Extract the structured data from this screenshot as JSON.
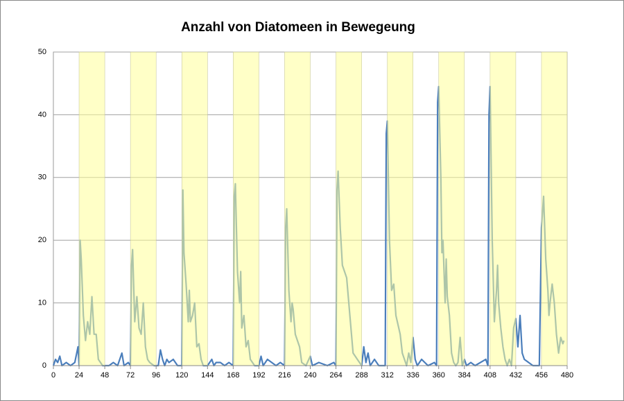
{
  "chart_data": {
    "type": "line",
    "title": "Anzahl von Diatomeen in Bewegeung",
    "color": "#4a7ebb",
    "band_color": "#ffff99",
    "grid": true,
    "xlim": [
      0,
      480
    ],
    "xticks": [
      0,
      24,
      48,
      72,
      96,
      120,
      144,
      168,
      192,
      216,
      240,
      264,
      288,
      312,
      336,
      360,
      384,
      408,
      432,
      456,
      480
    ],
    "ylim": [
      0,
      50
    ],
    "yticks": [
      0,
      10,
      20,
      30,
      40,
      50
    ],
    "shaded_x_ranges": [
      [
        24,
        48
      ],
      [
        72,
        96
      ],
      [
        120,
        144
      ],
      [
        168,
        192
      ],
      [
        216,
        240
      ],
      [
        264,
        288
      ],
      [
        312,
        336
      ],
      [
        360,
        384
      ],
      [
        408,
        432
      ],
      [
        456,
        480
      ]
    ],
    "x": [
      0,
      2,
      4,
      6,
      8,
      12,
      16,
      20,
      23,
      24,
      25,
      26,
      28,
      30,
      32,
      34,
      36,
      38,
      40,
      42,
      44,
      46,
      52,
      56,
      60,
      64,
      66,
      70,
      72,
      73,
      74,
      76,
      78,
      80,
      82,
      84,
      86,
      88,
      90,
      94,
      98,
      100,
      102,
      104,
      106,
      108,
      112,
      116,
      120,
      121,
      122,
      124,
      126,
      127,
      128,
      130,
      132,
      134,
      136,
      138,
      140,
      144,
      148,
      150,
      152,
      156,
      160,
      164,
      168,
      169,
      170,
      172,
      174,
      175,
      176,
      178,
      180,
      182,
      184,
      188,
      192,
      194,
      196,
      200,
      204,
      208,
      212,
      216,
      217,
      218,
      220,
      222,
      223,
      224,
      226,
      228,
      230,
      232,
      236,
      240,
      242,
      248,
      256,
      262,
      264,
      265,
      266,
      268,
      270,
      272,
      274,
      276,
      278,
      280,
      284,
      288,
      290,
      292,
      294,
      296,
      300,
      304,
      310,
      311,
      312,
      314,
      316,
      318,
      320,
      324,
      326,
      328,
      330,
      332,
      334,
      336,
      338,
      340,
      344,
      350,
      356,
      358,
      359,
      360,
      362,
      363,
      364,
      366,
      367,
      368,
      370,
      372,
      374,
      376,
      378,
      380,
      382,
      384,
      386,
      390,
      394,
      404,
      406,
      407,
      408,
      410,
      412,
      414,
      415,
      416,
      418,
      420,
      422,
      424,
      426,
      428,
      430,
      432,
      434,
      436,
      438,
      440,
      444,
      448,
      454,
      456,
      458,
      460,
      462,
      463,
      464,
      466,
      468,
      470,
      472,
      474,
      476,
      477
    ],
    "values": [
      0,
      1,
      0.5,
      1.5,
      0,
      0.5,
      0,
      0.5,
      3,
      0,
      20,
      17,
      8,
      4,
      7,
      5,
      11,
      5,
      5,
      1,
      0.5,
      0,
      0,
      0.5,
      0,
      2,
      0,
      0.5,
      0,
      16,
      18.5,
      7,
      11,
      6,
      5,
      10,
      3,
      1,
      0.5,
      0,
      0,
      2.5,
      1,
      0,
      1,
      0.5,
      1,
      0,
      0,
      28,
      18,
      13,
      7,
      12,
      7,
      8,
      10,
      3,
      3.5,
      1,
      0,
      0,
      1,
      0,
      0.5,
      0.5,
      0,
      0.5,
      0,
      27,
      29,
      15,
      10,
      15,
      6,
      8,
      3,
      4,
      1,
      0,
      0,
      1.5,
      0,
      1,
      0.5,
      0,
      0.5,
      0,
      22,
      25,
      12,
      7,
      10,
      9,
      5,
      4,
      3,
      0.5,
      0,
      1.5,
      0,
      0.5,
      0,
      0.5,
      0,
      28,
      31,
      22,
      16,
      15,
      14,
      10,
      6,
      2,
      1,
      0,
      3,
      0.5,
      2,
      0,
      1,
      0,
      0,
      37,
      39,
      20,
      12,
      13,
      8,
      5,
      2,
      1,
      0,
      2,
      0.5,
      4.5,
      1,
      0,
      1,
      0,
      0.5,
      0,
      42,
      44.5,
      30,
      18,
      20,
      10,
      17,
      11,
      8,
      2,
      0.5,
      0,
      0.5,
      4.5,
      0,
      1,
      0,
      0.5,
      0,
      1,
      0,
      40,
      44.5,
      20,
      7,
      12,
      16,
      10,
      6,
      3,
      1,
      0,
      1,
      0,
      6,
      7.5,
      3,
      8,
      2,
      1,
      0.5,
      0,
      0,
      22,
      27,
      17,
      12,
      8,
      10,
      13,
      10,
      5,
      2,
      4.5,
      3.5,
      4
    ]
  }
}
